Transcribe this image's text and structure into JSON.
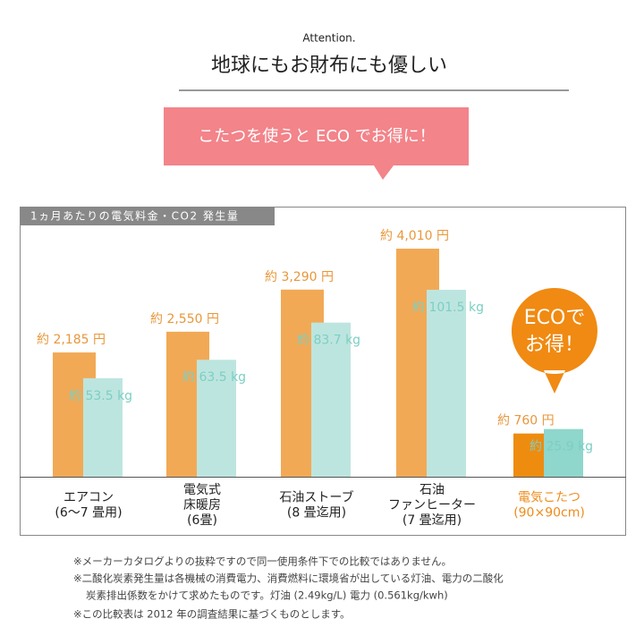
{
  "header": {
    "kicker": "Attention.",
    "title": "地球にもお財布にも優しい",
    "banner": "こたつを使うと ECO でお得に！"
  },
  "chart_data": {
    "type": "bar",
    "title": "1ヵ月あたりの電気料金・CO2 発生量",
    "categories": [
      [
        "エアコン",
        "(6〜7 畳用)"
      ],
      [
        "電気式",
        "床暖房",
        "(6畳)"
      ],
      [
        "石油ストーブ",
        "(8 畳迄用)"
      ],
      [
        "石油",
        "ファンヒーター",
        "(7 畳迄用)"
      ],
      [
        "電気こたつ",
        "(90×90cm)"
      ]
    ],
    "label_colors": [
      "#222222",
      "#222222",
      "#222222",
      "#222222",
      "#ee8c1c"
    ],
    "series": [
      {
        "color": "#f2a955",
        "colors": [
          "#f2a955",
          "#f2a955",
          "#f2a955",
          "#f2a955",
          "#ee8c10"
        ],
        "label_color": "#e8973a",
        "values": [
          2185,
          2550,
          3290,
          4010,
          760
        ],
        "value_labels": [
          "約 2,185 円",
          "約 2,550 円",
          "約 3,290 円",
          "約 4,010 円",
          "約 760 円"
        ]
      },
      {
        "color": "#bde5df",
        "colors": [
          "#bde5df",
          "#bde5df",
          "#bde5df",
          "#bde5df",
          "#8fd6cc"
        ],
        "label_color": "#7ccfc3",
        "values": [
          53.5,
          63.5,
          83.7,
          101.5,
          25.9
        ],
        "value_labels": [
          "約 53.5 kg",
          "約 63.5 kg",
          "約 83.7 kg",
          "約 101.5 kg",
          "約 25.9 kg"
        ]
      }
    ],
    "badge": [
      "ECOで",
      "お得！"
    ]
  },
  "notes": [
    "※メーカーカタログよりの抜粋ですので同一使用条件下での比較ではありません。",
    "※二酸化炭素発生量は各機械の消費電力、消費燃料に環境省が出している灯油、電力の二酸化",
    "炭素排出係数をかけて求めたものです。灯油 (2.49kg/L) 電力 (0.561kg/kwh)",
    "※この比較表は 2012 年の調査結果に基づくものとします。"
  ]
}
